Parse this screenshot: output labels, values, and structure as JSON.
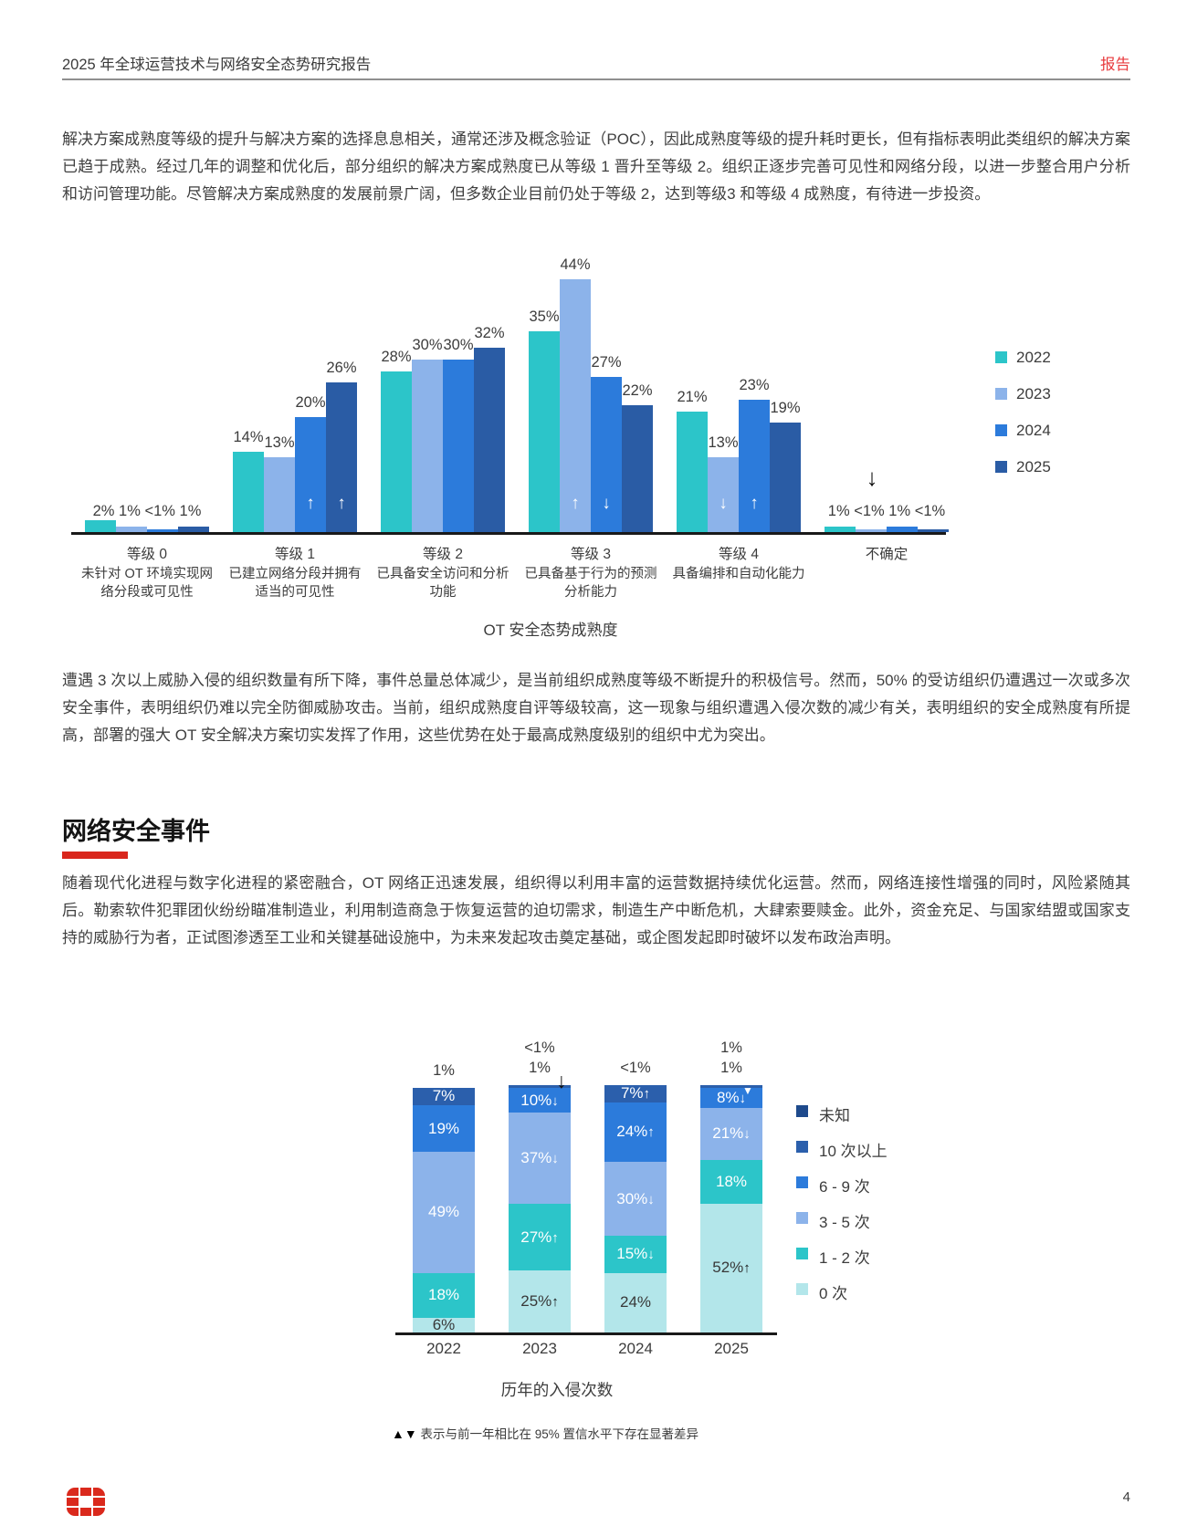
{
  "header": {
    "title": "2025 年全球运营技术与网络安全态势研究报告",
    "badge": "报告"
  },
  "para1": "解决方案成熟度等级的提升与解决方案的选择息息相关，通常还涉及概念验证（POC），因此成熟度等级的提升耗时更长，但有指标表明此类组织的解决方案已趋于成熟。经过几年的调整和优化后，部分组织的解决方案成熟度已从等级 1 晋升至等级 2。组织正逐步完善可见性和网络分段，以进一步整合用户分析和访问管理功能。尽管解决方案成熟度的发展前景广阔，但多数企业目前仍处于等级 2，达到等级3 和等级 4 成熟度，有待进一步投资。",
  "para2": "遭遇 3 次以上威胁入侵的组织数量有所下降，事件总量总体减少，是当前组织成熟度等级不断提升的积极信号。然而，50% 的受访组织仍遭遇过一次或多次安全事件，表明组织仍难以完全防御威胁攻击。当前，组织成熟度自评等级较高，这一现象与组织遭遇入侵次数的减少有关，表明组织的安全成熟度有所提高，部署的强大 OT 安全解决方案切实发挥了作用，这些优势在处于最高成熟度级别的组织中尤为突出。",
  "section": {
    "heading": "网络安全事件"
  },
  "para3": "随着现代化进程与数字化进程的紧密融合，OT 网络正迅速发展，组织得以利用丰富的运营数据持续优化运营。然而，网络连接性增强的同时，风险紧随其后。勒索软件犯罪团伙纷纷瞄准制造业，利用制造商急于恢复运营的迫切需求，制造生产中断危机，大肆索要赎金。此外，资金充足、与国家结盟或国家支持的威胁行为者，正试图渗透至工业和关键基础设施中，为未来发起攻击奠定基础，或企图发起即时破坏以发布政治声明。",
  "chart_data": [
    {
      "type": "bar",
      "title": "OT 安全态势成熟度",
      "unit": "%",
      "categories": [
        {
          "label": "等级 0",
          "desc": "未针对 OT 环境实现网络分段或可见性"
        },
        {
          "label": "等级 1",
          "desc": "已建立网络分段并拥有适当的可见性"
        },
        {
          "label": "等级 2",
          "desc": "已具备安全访问和分析功能"
        },
        {
          "label": "等级 3",
          "desc": "已具备基于行为的预测分析能力"
        },
        {
          "label": "等级 4",
          "desc": "具备编排和自动化能力"
        },
        {
          "label": "不确定",
          "desc": ""
        }
      ],
      "series": [
        {
          "name": "2022",
          "color": "#2cc5c9",
          "values": [
            2,
            14,
            28,
            35,
            21,
            1
          ],
          "labels": [
            "2%",
            "14%",
            "28%",
            "35%",
            "21%",
            "1%"
          ]
        },
        {
          "name": "2023",
          "color": "#8cb3ea",
          "values": [
            1,
            13,
            30,
            44,
            13,
            0.55
          ],
          "labels": [
            "1%",
            "13%",
            "30%",
            "44%",
            "13%",
            "<1%"
          ]
        },
        {
          "name": "2024",
          "color": "#2c7bdb",
          "values": [
            0.55,
            20,
            30,
            27,
            23,
            1
          ],
          "labels": [
            "<1%",
            "20%",
            "30%",
            "27%",
            "23%",
            "1%"
          ]
        },
        {
          "name": "2025",
          "color": "#2a5ca5",
          "values": [
            1,
            26,
            32,
            22,
            19,
            0.55
          ],
          "labels": [
            "1%",
            "26%",
            "32%",
            "22%",
            "19%",
            "<1%"
          ]
        }
      ],
      "tiny_groups": [
        0,
        5
      ],
      "bar_arrows": [
        {
          "cat": 1,
          "s": 2,
          "dir": "up"
        },
        {
          "cat": 1,
          "s": 3,
          "dir": "up"
        },
        {
          "cat": 3,
          "s": 1,
          "dir": "up"
        },
        {
          "cat": 3,
          "s": 2,
          "dir": "down"
        },
        {
          "cat": 4,
          "s": 1,
          "dir": "down"
        },
        {
          "cat": 4,
          "s": 2,
          "dir": "up"
        }
      ],
      "outside_arrow": {
        "cat": 5,
        "s": 1,
        "dir": "down"
      },
      "legend_position": "right"
    },
    {
      "type": "stacked-bar",
      "title": "历年的入侵次数",
      "unit": "%",
      "footnote_arrows": "▲▼",
      "footnote": "表示与前一年相比在 95% 置信水平下存在显著差异",
      "colors": {
        "unknown": "#1e4a8c",
        "10plus": "#2b5fac",
        "6to9": "#2c7bdb",
        "3to5": "#8cb3ea",
        "1to2": "#2cc5c9",
        "zero": "#b3e6ea"
      },
      "legend": [
        {
          "label": "未知",
          "color": "#1e4a8c"
        },
        {
          "label": "10 次以上",
          "color": "#2b5fac"
        },
        {
          "label": "6 - 9 次",
          "color": "#2c7bdb"
        },
        {
          "label": "3 - 5 次",
          "color": "#8cb3ea"
        },
        {
          "label": "1 - 2 次",
          "color": "#2cc5c9"
        },
        {
          "label": "0 次",
          "color": "#b3e6ea"
        }
      ],
      "columns": [
        {
          "year": "2022",
          "above": [
            "1%"
          ],
          "segments": [
            {
              "key": "10plus",
              "pct": 7,
              "label": "7%"
            },
            {
              "key": "6to9",
              "pct": 19,
              "label": "19%"
            },
            {
              "key": "3to5",
              "pct": 49,
              "label": "49%"
            },
            {
              "key": "1to2",
              "pct": 18,
              "label": "18%"
            },
            {
              "key": "zero",
              "pct": 6,
              "label": "6%"
            }
          ]
        },
        {
          "year": "2023",
          "above": [
            "<1%",
            "1%"
          ],
          "above_arrow": "down",
          "segments": [
            {
              "key": "10plus",
              "pct": 1,
              "label": ""
            },
            {
              "key": "6to9",
              "pct": 10,
              "label": "10%",
              "a": "↓"
            },
            {
              "key": "3to5",
              "pct": 37,
              "label": "37%",
              "a": "↓"
            },
            {
              "key": "1to2",
              "pct": 27,
              "label": "27%",
              "a": "↑"
            },
            {
              "key": "zero",
              "pct": 25,
              "label": "25%",
              "a": "↑",
              "ac": "dark"
            }
          ]
        },
        {
          "year": "2024",
          "above": [
            "<1%"
          ],
          "segments": [
            {
              "key": "10plus",
              "pct": 7,
              "label": "7%",
              "a": "↑"
            },
            {
              "key": "6to9",
              "pct": 24,
              "label": "24%",
              "a": "↑"
            },
            {
              "key": "3to5",
              "pct": 30,
              "label": "30%",
              "a": "↓"
            },
            {
              "key": "1to2",
              "pct": 15,
              "label": "15%",
              "a": "↓"
            },
            {
              "key": "zero",
              "pct": 24,
              "label": "24%"
            }
          ]
        },
        {
          "year": "2025",
          "above": [
            "1%",
            "1%"
          ],
          "strip_arrow": "▼",
          "segments": [
            {
              "key": "10plus",
              "pct": 1,
              "label": ""
            },
            {
              "key": "6to9",
              "pct": 8,
              "label": "8%",
              "a": "↓"
            },
            {
              "key": "3to5",
              "pct": 21,
              "label": "21%",
              "a": "↓"
            },
            {
              "key": "1to2",
              "pct": 18,
              "label": "18%"
            },
            {
              "key": "zero",
              "pct": 52,
              "label": "52%",
              "a": "↑",
              "ac": "dark"
            }
          ]
        }
      ]
    }
  ],
  "footer": {
    "page": "4"
  }
}
